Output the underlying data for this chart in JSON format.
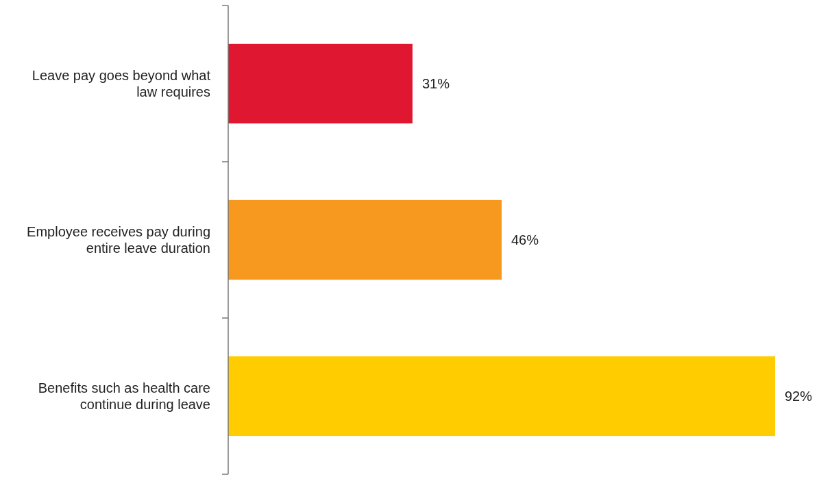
{
  "chart_data": {
    "type": "bar",
    "orientation": "horizontal",
    "categories": [
      "Leave pay goes beyond what law requires",
      "Employee receives pay during entire leave duration",
      "Benefits such as health care continue during leave"
    ],
    "values": [
      31,
      46,
      92
    ],
    "colors": [
      "#e01731",
      "#f7991f",
      "#ffcc00"
    ],
    "value_labels": [
      "31%",
      "46%",
      "92%"
    ]
  }
}
